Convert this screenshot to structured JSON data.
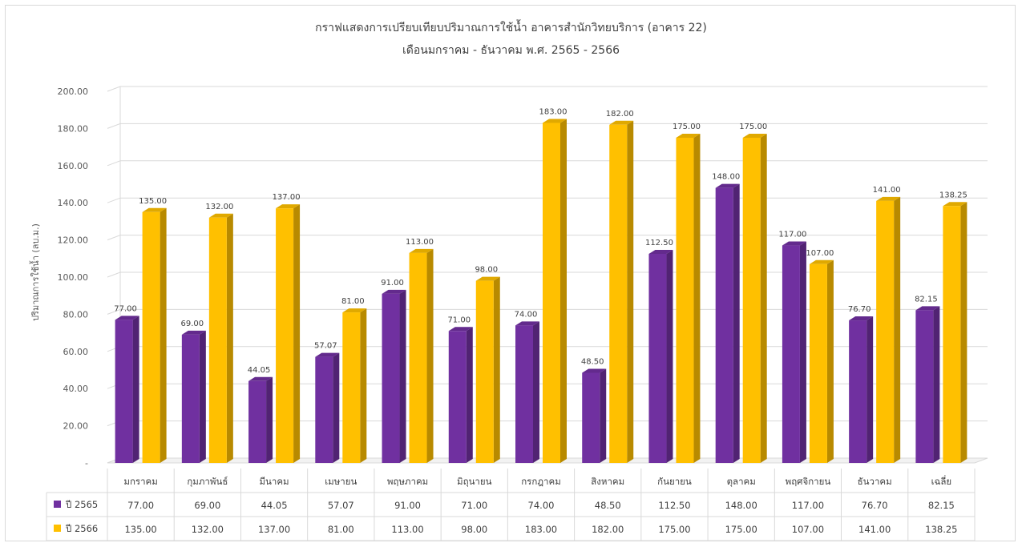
{
  "chart_data": {
    "type": "bar",
    "title": "กราฟแสดงการเปรียบเทียบปริมาณการใช้น้ำ อาคารสำนักวิทยบริการ (อาคาร 22)",
    "subtitle": "เดือนมกราคม - ธันวาคม พ.ศ. 2565 - 2566",
    "ylabel": "ปริมาณการใช้น้ำ (ลบ.ม.)",
    "ylim": [
      0,
      200
    ],
    "yticks": [
      "-",
      "20.00",
      "40.00",
      "60.00",
      "80.00",
      "100.00",
      "120.00",
      "140.00",
      "160.00",
      "180.00",
      "200.00"
    ],
    "categories": [
      "มกราคม",
      "กุมภาพันธ์",
      "มีนาคม",
      "เมษายน",
      "พฤษภาคม",
      "มิถุนายน",
      "กรกฎาคม",
      "สิงหาคม",
      "กันยายน",
      "ตุลาคม",
      "พฤศจิกายน",
      "ธันวาคม",
      "เฉลี่ย"
    ],
    "series": [
      {
        "name": "ปี 2565",
        "color": "#7030a0",
        "values": [
          77.0,
          69.0,
          44.05,
          57.07,
          91.0,
          71.0,
          74.0,
          48.5,
          112.5,
          148.0,
          117.0,
          76.7,
          82.15
        ],
        "labels": [
          "77.00",
          "69.00",
          "44.05",
          "57.07",
          "91.00",
          "71.00",
          "74.00",
          "48.50",
          "112.50",
          "148.00",
          "117.00",
          "76.70",
          "82.15"
        ]
      },
      {
        "name": "ปี 2566",
        "color": "#ffc000",
        "values": [
          135.0,
          132.0,
          137.0,
          81.0,
          113.0,
          98.0,
          183.0,
          182.0,
          175.0,
          175.0,
          107.0,
          141.0,
          138.25
        ],
        "labels": [
          "135.00",
          "132.00",
          "137.00",
          "81.00",
          "113.00",
          "98.00",
          "183.00",
          "182.00",
          "175.00",
          "175.00",
          "107.00",
          "141.00",
          "138.25"
        ]
      }
    ],
    "grid": true,
    "legend": "data-table"
  }
}
